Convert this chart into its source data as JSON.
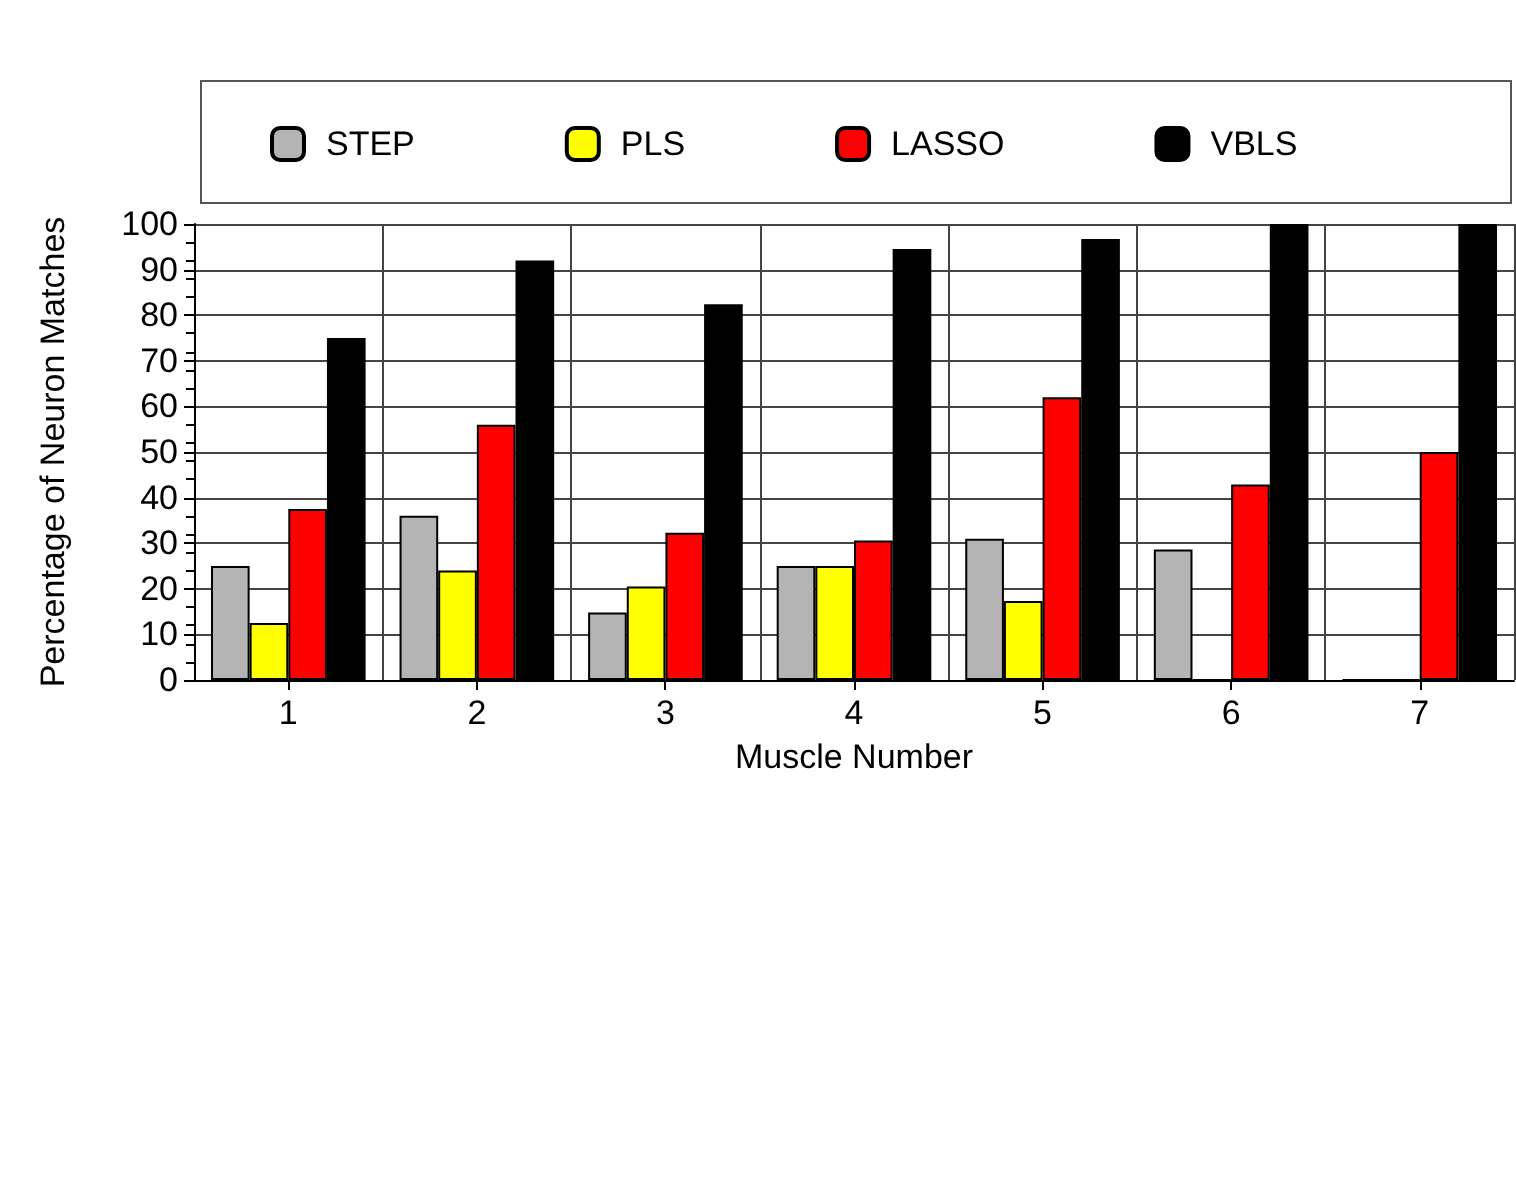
{
  "chart_data": {
    "type": "bar",
    "xlabel": "Muscle Number",
    "ylabel": "Percentage of Neuron Matches",
    "categories": [
      "1",
      "2",
      "3",
      "4",
      "5",
      "6",
      "7"
    ],
    "series": [
      {
        "name": "STEP",
        "color": "#b4b4b4",
        "values": [
          25,
          36,
          14.8,
          25,
          31,
          28.6,
          0
        ]
      },
      {
        "name": "PLS",
        "color": "#ffff00",
        "values": [
          12.5,
          24,
          20.5,
          25,
          17.3,
          0,
          0
        ]
      },
      {
        "name": "LASSO",
        "color": "#ff0000",
        "values": [
          37.5,
          56,
          32.3,
          30.6,
          62,
          42.9,
          50
        ]
      },
      {
        "name": "VBLS",
        "color": "#000000",
        "values": [
          75,
          92,
          82.4,
          94.5,
          96.7,
          100,
          100
        ]
      }
    ],
    "ylim": [
      0,
      100
    ],
    "yticks": [
      0,
      10,
      20,
      30,
      40,
      50,
      60,
      70,
      80,
      90,
      100
    ],
    "grid": true,
    "legend": "top"
  }
}
